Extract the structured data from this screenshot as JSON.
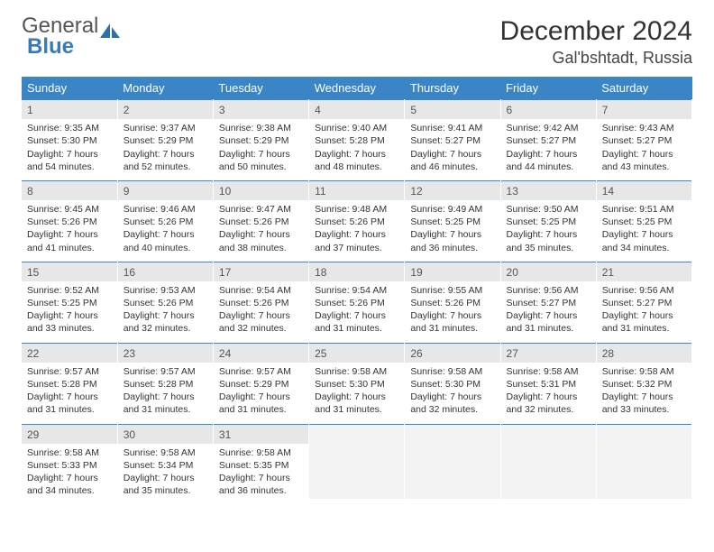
{
  "brand": {
    "word1": "General",
    "word2": "Blue",
    "word1_color": "#6a6a6a",
    "word2_color": "#3a7ab8",
    "icon_color": "#2f6fa8"
  },
  "header": {
    "title": "December 2024",
    "location": "Gal'bshtadt, Russia"
  },
  "styling": {
    "header_bg": "#3a85c6",
    "header_text": "#ffffff",
    "daynum_bg": "#e7e7e7",
    "daynum_text": "#555555",
    "border_accent": "#3a85c6",
    "body_text": "#333333",
    "font_size_day_content_pt": 8,
    "font_size_header_pt": 10,
    "font_size_title_pt": 22,
    "font_size_subtitle_pt": 14
  },
  "day_headers": [
    "Sunday",
    "Monday",
    "Tuesday",
    "Wednesday",
    "Thursday",
    "Friday",
    "Saturday"
  ],
  "weeks": [
    [
      {
        "n": "1",
        "sr": "Sunrise: 9:35 AM",
        "ss": "Sunset: 5:30 PM",
        "dl": "Daylight: 7 hours and 54 minutes."
      },
      {
        "n": "2",
        "sr": "Sunrise: 9:37 AM",
        "ss": "Sunset: 5:29 PM",
        "dl": "Daylight: 7 hours and 52 minutes."
      },
      {
        "n": "3",
        "sr": "Sunrise: 9:38 AM",
        "ss": "Sunset: 5:29 PM",
        "dl": "Daylight: 7 hours and 50 minutes."
      },
      {
        "n": "4",
        "sr": "Sunrise: 9:40 AM",
        "ss": "Sunset: 5:28 PM",
        "dl": "Daylight: 7 hours and 48 minutes."
      },
      {
        "n": "5",
        "sr": "Sunrise: 9:41 AM",
        "ss": "Sunset: 5:27 PM",
        "dl": "Daylight: 7 hours and 46 minutes."
      },
      {
        "n": "6",
        "sr": "Sunrise: 9:42 AM",
        "ss": "Sunset: 5:27 PM",
        "dl": "Daylight: 7 hours and 44 minutes."
      },
      {
        "n": "7",
        "sr": "Sunrise: 9:43 AM",
        "ss": "Sunset: 5:27 PM",
        "dl": "Daylight: 7 hours and 43 minutes."
      }
    ],
    [
      {
        "n": "8",
        "sr": "Sunrise: 9:45 AM",
        "ss": "Sunset: 5:26 PM",
        "dl": "Daylight: 7 hours and 41 minutes."
      },
      {
        "n": "9",
        "sr": "Sunrise: 9:46 AM",
        "ss": "Sunset: 5:26 PM",
        "dl": "Daylight: 7 hours and 40 minutes."
      },
      {
        "n": "10",
        "sr": "Sunrise: 9:47 AM",
        "ss": "Sunset: 5:26 PM",
        "dl": "Daylight: 7 hours and 38 minutes."
      },
      {
        "n": "11",
        "sr": "Sunrise: 9:48 AM",
        "ss": "Sunset: 5:26 PM",
        "dl": "Daylight: 7 hours and 37 minutes."
      },
      {
        "n": "12",
        "sr": "Sunrise: 9:49 AM",
        "ss": "Sunset: 5:25 PM",
        "dl": "Daylight: 7 hours and 36 minutes."
      },
      {
        "n": "13",
        "sr": "Sunrise: 9:50 AM",
        "ss": "Sunset: 5:25 PM",
        "dl": "Daylight: 7 hours and 35 minutes."
      },
      {
        "n": "14",
        "sr": "Sunrise: 9:51 AM",
        "ss": "Sunset: 5:25 PM",
        "dl": "Daylight: 7 hours and 34 minutes."
      }
    ],
    [
      {
        "n": "15",
        "sr": "Sunrise: 9:52 AM",
        "ss": "Sunset: 5:25 PM",
        "dl": "Daylight: 7 hours and 33 minutes."
      },
      {
        "n": "16",
        "sr": "Sunrise: 9:53 AM",
        "ss": "Sunset: 5:26 PM",
        "dl": "Daylight: 7 hours and 32 minutes."
      },
      {
        "n": "17",
        "sr": "Sunrise: 9:54 AM",
        "ss": "Sunset: 5:26 PM",
        "dl": "Daylight: 7 hours and 32 minutes."
      },
      {
        "n": "18",
        "sr": "Sunrise: 9:54 AM",
        "ss": "Sunset: 5:26 PM",
        "dl": "Daylight: 7 hours and 31 minutes."
      },
      {
        "n": "19",
        "sr": "Sunrise: 9:55 AM",
        "ss": "Sunset: 5:26 PM",
        "dl": "Daylight: 7 hours and 31 minutes."
      },
      {
        "n": "20",
        "sr": "Sunrise: 9:56 AM",
        "ss": "Sunset: 5:27 PM",
        "dl": "Daylight: 7 hours and 31 minutes."
      },
      {
        "n": "21",
        "sr": "Sunrise: 9:56 AM",
        "ss": "Sunset: 5:27 PM",
        "dl": "Daylight: 7 hours and 31 minutes."
      }
    ],
    [
      {
        "n": "22",
        "sr": "Sunrise: 9:57 AM",
        "ss": "Sunset: 5:28 PM",
        "dl": "Daylight: 7 hours and 31 minutes."
      },
      {
        "n": "23",
        "sr": "Sunrise: 9:57 AM",
        "ss": "Sunset: 5:28 PM",
        "dl": "Daylight: 7 hours and 31 minutes."
      },
      {
        "n": "24",
        "sr": "Sunrise: 9:57 AM",
        "ss": "Sunset: 5:29 PM",
        "dl": "Daylight: 7 hours and 31 minutes."
      },
      {
        "n": "25",
        "sr": "Sunrise: 9:58 AM",
        "ss": "Sunset: 5:30 PM",
        "dl": "Daylight: 7 hours and 31 minutes."
      },
      {
        "n": "26",
        "sr": "Sunrise: 9:58 AM",
        "ss": "Sunset: 5:30 PM",
        "dl": "Daylight: 7 hours and 32 minutes."
      },
      {
        "n": "27",
        "sr": "Sunrise: 9:58 AM",
        "ss": "Sunset: 5:31 PM",
        "dl": "Daylight: 7 hours and 32 minutes."
      },
      {
        "n": "28",
        "sr": "Sunrise: 9:58 AM",
        "ss": "Sunset: 5:32 PM",
        "dl": "Daylight: 7 hours and 33 minutes."
      }
    ],
    [
      {
        "n": "29",
        "sr": "Sunrise: 9:58 AM",
        "ss": "Sunset: 5:33 PM",
        "dl": "Daylight: 7 hours and 34 minutes."
      },
      {
        "n": "30",
        "sr": "Sunrise: 9:58 AM",
        "ss": "Sunset: 5:34 PM",
        "dl": "Daylight: 7 hours and 35 minutes."
      },
      {
        "n": "31",
        "sr": "Sunrise: 9:58 AM",
        "ss": "Sunset: 5:35 PM",
        "dl": "Daylight: 7 hours and 36 minutes."
      },
      null,
      null,
      null,
      null
    ]
  ]
}
